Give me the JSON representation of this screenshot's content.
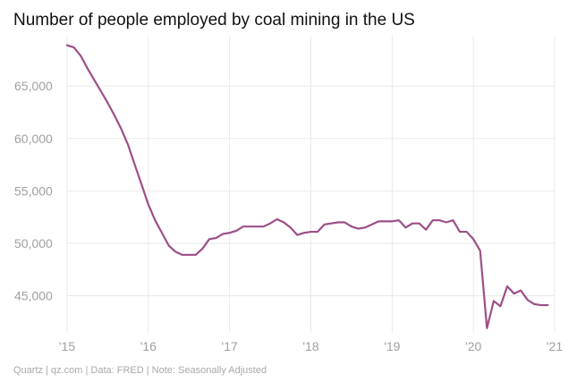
{
  "chart_data": {
    "type": "line",
    "title": "Number of people employed by coal mining in the US",
    "footer": "Quartz | qz.com | Data: FRED | Note: Seasonally Adjusted",
    "xlabel": "",
    "ylabel": "",
    "xlim": [
      2015.0,
      2021.0
    ],
    "ylim": [
      41800,
      69800
    ],
    "grid": true,
    "x_ticks": [
      {
        "value": 2015,
        "label": "'15"
      },
      {
        "value": 2016,
        "label": "'16"
      },
      {
        "value": 2017,
        "label": "'17"
      },
      {
        "value": 2018,
        "label": "'18"
      },
      {
        "value": 2019,
        "label": "'19"
      },
      {
        "value": 2020,
        "label": "'20"
      },
      {
        "value": 2021,
        "label": "'21"
      }
    ],
    "y_ticks": [
      {
        "value": 45000,
        "label": "45,000"
      },
      {
        "value": 50000,
        "label": "50,000"
      },
      {
        "value": 55000,
        "label": "55,000"
      },
      {
        "value": 60000,
        "label": "60,000"
      },
      {
        "value": 65000,
        "label": "65,000"
      }
    ],
    "line_color": "#9c4f87",
    "series": [
      {
        "name": "Coal mining employment",
        "x": [
          2015.0,
          2015.083,
          2015.167,
          2015.25,
          2015.333,
          2015.417,
          2015.5,
          2015.583,
          2015.667,
          2015.75,
          2015.833,
          2015.917,
          2016.0,
          2016.083,
          2016.167,
          2016.25,
          2016.333,
          2016.417,
          2016.5,
          2016.583,
          2016.667,
          2016.75,
          2016.833,
          2016.917,
          2017.0,
          2017.083,
          2017.167,
          2017.25,
          2017.333,
          2017.417,
          2017.5,
          2017.583,
          2017.667,
          2017.75,
          2017.833,
          2017.917,
          2018.0,
          2018.083,
          2018.167,
          2018.25,
          2018.333,
          2018.417,
          2018.5,
          2018.583,
          2018.667,
          2018.75,
          2018.833,
          2018.917,
          2019.0,
          2019.083,
          2019.167,
          2019.25,
          2019.333,
          2019.417,
          2019.5,
          2019.583,
          2019.667,
          2019.75,
          2019.833,
          2019.917,
          2020.0,
          2020.083,
          2020.167,
          2020.25,
          2020.333,
          2020.417,
          2020.5,
          2020.583,
          2020.667,
          2020.75,
          2020.833,
          2020.917
        ],
        "values": [
          68900,
          68700,
          67900,
          66700,
          65600,
          64500,
          63400,
          62200,
          60900,
          59400,
          57500,
          55600,
          53700,
          52200,
          51000,
          49800,
          49200,
          48900,
          48900,
          48900,
          49500,
          50400,
          50500,
          50900,
          51000,
          51200,
          51600,
          51600,
          51600,
          51600,
          51900,
          52300,
          52000,
          51500,
          50800,
          51000,
          51100,
          51100,
          51800,
          51900,
          52000,
          52000,
          51600,
          51400,
          51500,
          51800,
          52100,
          52100,
          52100,
          52200,
          51500,
          51900,
          51900,
          51300,
          52200,
          52200,
          52000,
          52200,
          51100,
          51100,
          50400,
          49300,
          41900,
          44500,
          44000,
          45900,
          45200,
          45500,
          44600,
          44200,
          44100,
          44100
        ]
      }
    ]
  }
}
